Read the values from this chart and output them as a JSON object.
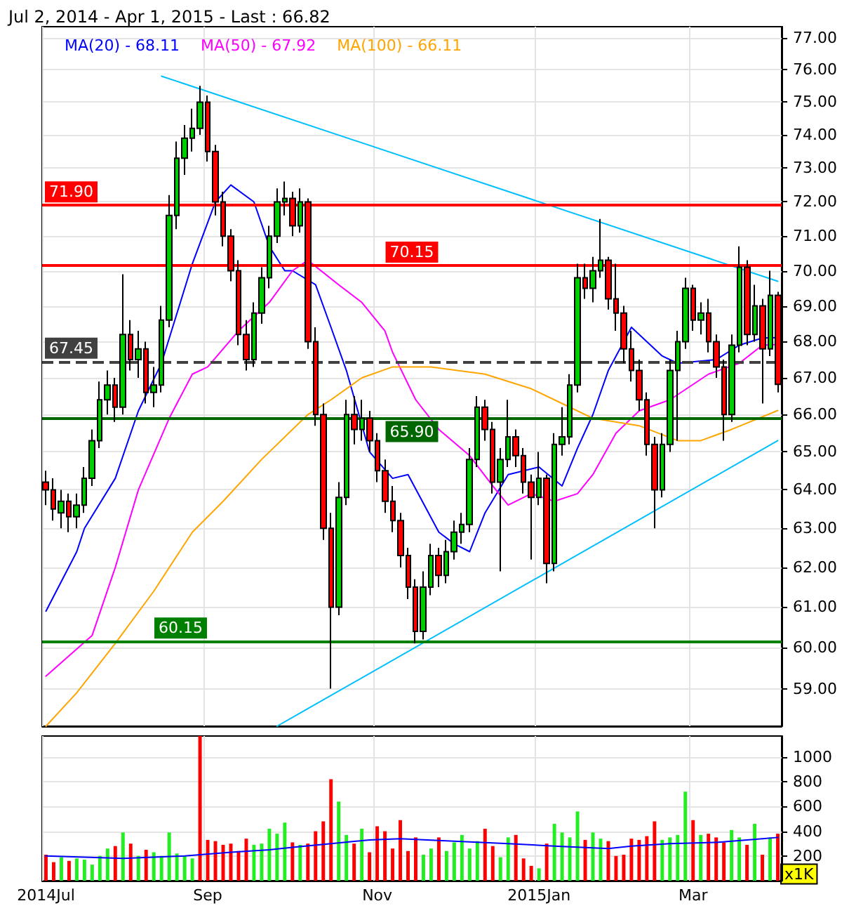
{
  "chart_data": [
    {
      "type": "candlestick",
      "title": "Jul 2, 2014 - Apr 1, 2015 - Last : 66.82",
      "categories": [
        null,
        null,
        null,
        null,
        null,
        null,
        null,
        null,
        null,
        null,
        null,
        null,
        null,
        null,
        null,
        null,
        null,
        null,
        null,
        null,
        null,
        null,
        null,
        null,
        null,
        null,
        null,
        null,
        null,
        null,
        null,
        null,
        null,
        null,
        null,
        null,
        null,
        null,
        null,
        null,
        null,
        null,
        null,
        null,
        null,
        null,
        null,
        null,
        null,
        null,
        null,
        null,
        null,
        null,
        null,
        null,
        null,
        null,
        null,
        null,
        null,
        null,
        null,
        null,
        null,
        null,
        null,
        null,
        null,
        null,
        null,
        null,
        null,
        null,
        null,
        null,
        null,
        null,
        null,
        null,
        null,
        null,
        null,
        null,
        null,
        null,
        null,
        null,
        null,
        null,
        null,
        null,
        null,
        null,
        null,
        null
      ],
      "ohlc": [
        [
          64.2,
          64.5,
          63.6,
          64.0
        ],
        [
          64.0,
          64.3,
          63.2,
          63.5
        ],
        [
          63.4,
          64.0,
          63.0,
          63.7
        ],
        [
          63.7,
          63.9,
          62.9,
          63.3
        ],
        [
          63.3,
          63.9,
          63.0,
          63.6
        ],
        [
          63.6,
          64.6,
          63.4,
          64.3
        ],
        [
          64.3,
          65.6,
          64.1,
          65.3
        ],
        [
          65.3,
          66.9,
          65.1,
          66.4
        ],
        [
          66.4,
          67.2,
          66.0,
          66.8
        ],
        [
          66.8,
          67.0,
          65.8,
          66.2
        ],
        [
          66.2,
          69.9,
          66.0,
          68.2
        ],
        [
          68.2,
          68.6,
          67.2,
          67.5
        ],
        [
          67.5,
          68.3,
          67.0,
          67.8
        ],
        [
          67.8,
          68.0,
          66.3,
          66.6
        ],
        [
          66.6,
          67.3,
          66.2,
          66.8
        ],
        [
          66.8,
          69.0,
          66.6,
          68.6
        ],
        [
          68.6,
          72.2,
          68.4,
          71.6
        ],
        [
          71.6,
          73.8,
          71.2,
          73.3
        ],
        [
          73.3,
          74.3,
          72.8,
          73.9
        ],
        [
          73.9,
          74.8,
          73.5,
          74.2
        ],
        [
          74.2,
          75.5,
          74.0,
          75.0
        ],
        [
          75.0,
          75.2,
          73.2,
          73.5
        ],
        [
          73.5,
          73.7,
          71.6,
          72.0
        ],
        [
          72.0,
          72.3,
          70.7,
          71.0
        ],
        [
          71.0,
          71.2,
          69.7,
          70.0
        ],
        [
          70.0,
          70.3,
          67.9,
          68.2
        ],
        [
          68.2,
          68.6,
          67.2,
          67.5
        ],
        [
          67.5,
          69.1,
          67.3,
          68.8
        ],
        [
          68.8,
          70.1,
          68.5,
          69.8
        ],
        [
          69.8,
          71.3,
          69.5,
          71.0
        ],
        [
          71.0,
          72.4,
          70.8,
          72.0
        ],
        [
          72.0,
          72.6,
          71.6,
          72.1
        ],
        [
          72.1,
          72.3,
          71.0,
          71.3
        ],
        [
          71.3,
          72.4,
          71.1,
          72.0
        ],
        [
          72.0,
          72.1,
          67.8,
          68.0
        ],
        [
          68.0,
          68.4,
          65.7,
          66.0
        ],
        [
          66.0,
          66.3,
          62.7,
          63.0
        ],
        [
          63.0,
          63.4,
          59.0,
          61.0
        ],
        [
          61.0,
          64.2,
          60.8,
          63.8
        ],
        [
          63.8,
          66.4,
          63.6,
          66.0
        ],
        [
          66.0,
          66.5,
          65.2,
          65.6
        ],
        [
          65.6,
          66.4,
          65.3,
          65.9
        ],
        [
          65.9,
          66.1,
          65.0,
          65.3
        ],
        [
          65.3,
          65.5,
          64.2,
          64.5
        ],
        [
          64.5,
          64.8,
          63.4,
          63.7
        ],
        [
          63.7,
          64.1,
          62.9,
          63.2
        ],
        [
          63.2,
          63.4,
          62.0,
          62.3
        ],
        [
          62.3,
          62.5,
          61.2,
          61.5
        ],
        [
          61.5,
          61.7,
          60.1,
          60.4
        ],
        [
          60.4,
          61.9,
          60.2,
          61.5
        ],
        [
          61.5,
          62.6,
          61.3,
          62.3
        ],
        [
          62.3,
          62.5,
          61.5,
          61.8
        ],
        [
          61.8,
          62.7,
          61.6,
          62.4
        ],
        [
          62.4,
          63.2,
          62.2,
          62.9
        ],
        [
          62.9,
          63.4,
          62.6,
          63.1
        ],
        [
          63.1,
          65.1,
          62.9,
          64.8
        ],
        [
          64.8,
          66.5,
          64.6,
          66.2
        ],
        [
          66.2,
          66.4,
          65.3,
          65.6
        ],
        [
          65.6,
          65.8,
          63.9,
          64.2
        ],
        [
          64.2,
          65.1,
          61.9,
          64.8
        ],
        [
          64.8,
          66.4,
          64.6,
          65.4
        ],
        [
          65.4,
          65.6,
          64.6,
          64.9
        ],
        [
          64.9,
          65.1,
          63.9,
          64.2
        ],
        [
          64.2,
          64.4,
          62.2,
          63.8
        ],
        [
          63.8,
          65.0,
          63.6,
          64.3
        ],
        [
          64.3,
          64.4,
          61.6,
          62.1
        ],
        [
          62.1,
          65.5,
          61.9,
          65.2
        ],
        [
          65.2,
          66.2,
          64.9,
          65.4
        ],
        [
          65.4,
          67.1,
          65.2,
          66.8
        ],
        [
          66.8,
          70.2,
          66.6,
          69.8
        ],
        [
          69.8,
          70.2,
          69.2,
          69.5
        ],
        [
          69.5,
          70.4,
          69.1,
          70.0
        ],
        [
          70.0,
          71.5,
          69.8,
          70.3
        ],
        [
          70.3,
          70.4,
          68.9,
          69.2
        ],
        [
          69.2,
          70.2,
          68.3,
          68.8
        ],
        [
          68.8,
          69.0,
          67.4,
          67.8
        ],
        [
          67.8,
          68.3,
          66.9,
          67.2
        ],
        [
          67.2,
          67.5,
          66.1,
          66.4
        ],
        [
          66.4,
          66.6,
          64.9,
          65.2
        ],
        [
          65.2,
          65.4,
          63.0,
          64.0
        ],
        [
          64.0,
          65.5,
          63.8,
          65.2
        ],
        [
          65.2,
          67.5,
          65.0,
          67.2
        ],
        [
          67.2,
          68.3,
          65.3,
          68.0
        ],
        [
          68.0,
          69.8,
          67.8,
          69.5
        ],
        [
          69.5,
          69.6,
          68.3,
          68.6
        ],
        [
          68.6,
          69.1,
          68.2,
          68.8
        ],
        [
          68.8,
          69.2,
          67.7,
          68.0
        ],
        [
          68.0,
          68.2,
          67.0,
          67.3
        ],
        [
          67.3,
          67.5,
          65.3,
          66.0
        ],
        [
          66.0,
          68.2,
          65.8,
          67.9
        ],
        [
          67.9,
          70.7,
          67.7,
          70.1
        ],
        [
          70.1,
          70.3,
          67.9,
          68.2
        ],
        [
          68.2,
          69.6,
          68.0,
          69.0
        ],
        [
          69.0,
          69.2,
          66.3,
          67.8
        ],
        [
          67.8,
          70.0,
          67.6,
          69.3
        ],
        [
          69.3,
          69.4,
          66.6,
          66.82
        ]
      ],
      "colors": [
        "#ff0000",
        "#ff0000",
        "#00cc00",
        "#ff0000",
        "#00cc00",
        "#00cc00",
        "#00cc00",
        "#00cc00",
        "#00cc00",
        "#ff0000",
        "#00cc00",
        "#ff0000",
        "#00cc00",
        "#ff0000",
        "#00cc00",
        "#00cc00",
        "#00cc00",
        "#00cc00",
        "#00cc00",
        "#00cc00",
        "#00cc00",
        "#ff0000",
        "#ff0000",
        "#ff0000",
        "#ff0000",
        "#ff0000",
        "#ff0000",
        "#00cc00",
        "#00cc00",
        "#00cc00",
        "#00cc00",
        "#00cc00",
        "#ff0000",
        "#00cc00",
        "#ff0000",
        "#ff0000",
        "#ff0000",
        "#ff0000",
        "#00cc00",
        "#00cc00",
        "#ff0000",
        "#00cc00",
        "#ff0000",
        "#ff0000",
        "#ff0000",
        "#ff0000",
        "#ff0000",
        "#ff0000",
        "#ff0000",
        "#00cc00",
        "#00cc00",
        "#ff0000",
        "#00cc00",
        "#00cc00",
        "#00cc00",
        "#00cc00",
        "#00cc00",
        "#ff0000",
        "#ff0000",
        "#00cc00",
        "#00cc00",
        "#ff0000",
        "#ff0000",
        "#ff0000",
        "#00cc00",
        "#ff0000",
        "#00cc00",
        "#00cc00",
        "#00cc00",
        "#00cc00",
        "#ff0000",
        "#00cc00",
        "#00cc00",
        "#ff0000",
        "#ff0000",
        "#ff0000",
        "#ff0000",
        "#ff0000",
        "#ff0000",
        "#ff0000",
        "#00cc00",
        "#00cc00",
        "#00cc00",
        "#00cc00",
        "#ff0000",
        "#00cc00",
        "#ff0000",
        "#ff0000",
        "#ff0000",
        "#00cc00",
        "#00cc00",
        "#ff0000",
        "#00cc00",
        "#ff0000",
        "#00cc00",
        "#ff0000"
      ],
      "series": [
        {
          "type": "line",
          "name": "MA(20) - 68.11",
          "color": "#0000ff",
          "values": [
            60.9,
            null,
            null,
            null,
            62.4,
            63.0,
            null,
            null,
            null,
            64.3,
            null,
            null,
            66.1,
            null,
            null,
            67.4,
            null,
            null,
            null,
            70.2,
            null,
            null,
            72.0,
            null,
            72.5,
            null,
            null,
            72.0,
            null,
            70.7,
            null,
            70.0,
            70.0,
            null,
            null,
            69.6,
            null,
            68.4,
            null,
            67.2,
            null,
            null,
            65.0,
            null,
            null,
            64.3,
            null,
            64.4,
            null,
            null,
            null,
            62.9,
            null,
            62.6,
            null,
            62.4,
            null,
            63.4,
            null,
            null,
            64.4,
            null,
            null,
            null,
            64.6,
            null,
            null,
            64.1,
            null,
            65.1,
            null,
            66.0,
            null,
            67.2,
            null,
            null,
            68.4,
            null,
            null,
            null,
            67.6,
            null,
            67.4,
            null,
            null,
            null,
            null,
            67.5,
            null,
            null,
            67.9,
            null,
            null,
            68.1,
            null,
            68.11
          ]
        },
        {
          "type": "line",
          "name": "MA(50) - 67.92",
          "color": "#ff00ff",
          "values": [
            59.3,
            null,
            null,
            null,
            null,
            null,
            60.3,
            null,
            null,
            62.0,
            null,
            null,
            64.0,
            null,
            null,
            null,
            65.9,
            null,
            null,
            67.1,
            null,
            67.3,
            null,
            null,
            null,
            68.3,
            null,
            null,
            null,
            69.1,
            null,
            null,
            70.0,
            null,
            70.3,
            null,
            null,
            null,
            69.6,
            null,
            null,
            69.1,
            null,
            null,
            68.3,
            67.7,
            null,
            null,
            66.4,
            null,
            null,
            65.6,
            null,
            null,
            null,
            64.9,
            null,
            null,
            64.1,
            null,
            63.6,
            null,
            null,
            63.9,
            null,
            null,
            63.7,
            null,
            null,
            63.9,
            null,
            64.4,
            null,
            null,
            65.5,
            null,
            null,
            66.1,
            null,
            null,
            null,
            66.4,
            null,
            null,
            null,
            null,
            67.1,
            null,
            null,
            null,
            67.4,
            null,
            null,
            67.9,
            null,
            67.92
          ]
        },
        {
          "type": "line",
          "name": "MA(100) - 66.11",
          "color": "#ffa500",
          "values": [
            58.1,
            null,
            null,
            null,
            58.9,
            null,
            null,
            null,
            null,
            60.1,
            null,
            null,
            null,
            null,
            61.4,
            null,
            null,
            null,
            null,
            62.9,
            null,
            null,
            null,
            63.7,
            null,
            null,
            null,
            null,
            64.8,
            null,
            null,
            null,
            null,
            null,
            66.0,
            null,
            null,
            66.4,
            null,
            null,
            null,
            67.0,
            null,
            null,
            null,
            67.3,
            null,
            null,
            null,
            null,
            67.3,
            null,
            null,
            null,
            null,
            null,
            null,
            67.1,
            null,
            null,
            null,
            null,
            null,
            66.7,
            null,
            null,
            null,
            null,
            66.2,
            null,
            null,
            65.9,
            null,
            null,
            null,
            null,
            null,
            65.7,
            null,
            null,
            null,
            null,
            65.3,
            null,
            null,
            65.3,
            null,
            null,
            null,
            65.6,
            null,
            null,
            null,
            null,
            null,
            66.11
          ]
        },
        {
          "type": "line",
          "color": "#00bfff",
          "values": [
            null,
            null,
            null,
            null,
            null,
            null,
            null,
            null,
            null,
            null,
            null,
            null,
            null,
            null,
            null,
            75.8,
            null,
            null,
            null,
            null,
            null,
            null,
            null,
            null,
            null,
            null,
            null,
            null,
            null,
            null,
            null,
            null,
            null,
            null,
            null,
            null,
            null,
            null,
            null,
            null,
            null,
            null,
            null,
            null,
            null,
            null,
            null,
            null,
            null,
            null,
            null,
            null,
            null,
            null,
            null,
            null,
            null,
            null,
            null,
            null,
            null,
            null,
            null,
            null,
            null,
            null,
            null,
            null,
            null,
            null,
            null,
            null,
            null,
            null,
            null,
            null,
            null,
            null,
            null,
            null,
            null,
            null,
            null,
            null,
            null,
            null,
            null,
            null,
            null,
            null,
            null,
            null,
            null,
            null,
            null,
            69.7
          ]
        },
        {
          "type": "line",
          "color": "#00bfff",
          "values": [
            null,
            null,
            null,
            null,
            null,
            null,
            null,
            null,
            null,
            null,
            null,
            null,
            null,
            null,
            null,
            null,
            null,
            null,
            null,
            null,
            null,
            null,
            null,
            null,
            null,
            null,
            null,
            null,
            null,
            null,
            58.1,
            null,
            null,
            null,
            null,
            null,
            null,
            null,
            null,
            null,
            null,
            null,
            null,
            null,
            null,
            null,
            null,
            null,
            null,
            null,
            null,
            null,
            null,
            null,
            null,
            null,
            null,
            null,
            null,
            null,
            null,
            null,
            null,
            null,
            null,
            null,
            null,
            null,
            null,
            null,
            null,
            null,
            null,
            null,
            null,
            null,
            null,
            null,
            null,
            null,
            null,
            null,
            null,
            null,
            null,
            null,
            null,
            null,
            null,
            null,
            null,
            null,
            null,
            null,
            null,
            65.3
          ]
        }
      ],
      "ylim": [
        58.1,
        77.35
      ],
      "yticks": [
        {
          "value": 59,
          "label": "59.00"
        },
        {
          "value": 60,
          "label": "60.00"
        },
        {
          "value": 61,
          "label": "61.00"
        },
        {
          "value": 62,
          "label": "62.00"
        },
        {
          "value": 63,
          "label": "63.00"
        },
        {
          "value": 64,
          "label": "64.00"
        },
        {
          "value": 65,
          "label": "65.00"
        },
        {
          "value": 66,
          "label": "66.00"
        },
        {
          "value": 67,
          "label": "67.00"
        },
        {
          "value": 68,
          "label": "68.00"
        },
        {
          "value": 69,
          "label": "69.00"
        },
        {
          "value": 70,
          "label": "70.00"
        },
        {
          "value": 71,
          "label": "71.00"
        },
        {
          "value": 72,
          "label": "72.00"
        },
        {
          "value": 73,
          "label": "73.00"
        },
        {
          "value": 74,
          "label": "74.00"
        },
        {
          "value": 75,
          "label": "75.00"
        },
        {
          "value": 76,
          "label": "76.00"
        },
        {
          "value": 77,
          "label": "77.00"
        }
      ],
      "log": "y",
      "grid": true,
      "legend": "top left",
      "tick_labels": "y",
      "marker": "none",
      "ref_lines": [
        {
          "axis": "y",
          "value": 71.9,
          "label": "71.90",
          "color": "#ff0000"
        },
        {
          "axis": "y",
          "value": 70.15,
          "label": "70.15",
          "color": "#ff0000"
        },
        {
          "axis": "y",
          "value": 67.45,
          "label": "67.45",
          "color": "#404040",
          "line_style": "dashed"
        },
        {
          "axis": "y",
          "value": 65.9,
          "label": "65.90",
          "color": "#006600"
        },
        {
          "axis": "y",
          "value": 60.15,
          "label": "60.15",
          "color": "#008000"
        }
      ]
    },
    {
      "type": "bar",
      "ylabel": "x1K",
      "categories": [
        "2014Jul",
        null,
        null,
        null,
        null,
        null,
        null,
        null,
        null,
        null,
        null,
        null,
        null,
        null,
        null,
        null,
        null,
        null,
        null,
        null,
        null,
        "Sep",
        null,
        null,
        null,
        null,
        null,
        null,
        null,
        null,
        null,
        null,
        null,
        null,
        null,
        null,
        null,
        null,
        null,
        null,
        null,
        null,
        null,
        "Nov",
        null,
        null,
        null,
        null,
        null,
        null,
        null,
        null,
        null,
        null,
        null,
        null,
        null,
        null,
        null,
        null,
        null,
        null,
        null,
        null,
        "2015Jan",
        null,
        null,
        null,
        null,
        null,
        null,
        null,
        null,
        null,
        null,
        null,
        null,
        null,
        null,
        null,
        null,
        null,
        null,
        null,
        "Mar",
        null,
        null,
        null,
        null,
        null,
        null,
        null,
        null,
        null,
        null,
        null
      ],
      "values": [
        210,
        150,
        190,
        160,
        180,
        170,
        130,
        200,
        260,
        280,
        390,
        300,
        200,
        250,
        230,
        200,
        390,
        220,
        200,
        180,
        1170,
        330,
        320,
        290,
        300,
        240,
        340,
        290,
        300,
        420,
        380,
        470,
        310,
        290,
        300,
        400,
        480,
        820,
        640,
        370,
        300,
        420,
        230,
        440,
        400,
        260,
        490,
        240,
        350,
        210,
        260,
        350,
        240,
        310,
        370,
        260,
        320,
        420,
        280,
        190,
        350,
        370,
        180,
        120,
        100,
        300,
        460,
        390,
        350,
        560,
        330,
        390,
        340,
        320,
        200,
        210,
        340,
        330,
        360,
        480,
        330,
        350,
        370,
        720,
        490,
        370,
        380,
        350,
        310,
        410,
        350,
        290,
        460,
        210,
        350,
        380
      ],
      "colors": [
        "#ff0000",
        "#ff0000",
        "#22ee22",
        "#ff0000",
        "#22ee22",
        "#22ee22",
        "#22ee22",
        "#22ee22",
        "#22ee22",
        "#ff0000",
        "#22ee22",
        "#ff0000",
        "#22ee22",
        "#ff0000",
        "#22ee22",
        "#22ee22",
        "#22ee22",
        "#22ee22",
        "#22ee22",
        "#22ee22",
        "#ff0000",
        "#ff0000",
        "#ff0000",
        "#ff0000",
        "#ff0000",
        "#ff0000",
        "#ff0000",
        "#22ee22",
        "#22ee22",
        "#22ee22",
        "#22ee22",
        "#22ee22",
        "#ff0000",
        "#22ee22",
        "#ff0000",
        "#ff0000",
        "#ff0000",
        "#ff0000",
        "#22ee22",
        "#22ee22",
        "#ff0000",
        "#22ee22",
        "#ff0000",
        "#ff0000",
        "#ff0000",
        "#ff0000",
        "#ff0000",
        "#ff0000",
        "#ff0000",
        "#22ee22",
        "#22ee22",
        "#ff0000",
        "#22ee22",
        "#22ee22",
        "#22ee22",
        "#22ee22",
        "#22ee22",
        "#ff0000",
        "#ff0000",
        "#22ee22",
        "#22ee22",
        "#ff0000",
        "#ff0000",
        "#ff0000",
        "#22ee22",
        "#ff0000",
        "#22ee22",
        "#22ee22",
        "#22ee22",
        "#22ee22",
        "#ff0000",
        "#22ee22",
        "#22ee22",
        "#ff0000",
        "#ff0000",
        "#ff0000",
        "#ff0000",
        "#ff0000",
        "#ff0000",
        "#ff0000",
        "#22ee22",
        "#22ee22",
        "#22ee22",
        "#22ee22",
        "#ff0000",
        "#22ee22",
        "#ff0000",
        "#ff0000",
        "#ff0000",
        "#22ee22",
        "#22ee22",
        "#ff0000",
        "#22ee22",
        "#ff0000",
        "#22ee22",
        "#ff0000"
      ],
      "series": [
        {
          "type": "line",
          "color": "#0000ff",
          "values": [
            200,
            null,
            null,
            null,
            null,
            null,
            null,
            null,
            null,
            null,
            180,
            null,
            null,
            null,
            null,
            null,
            null,
            null,
            200,
            null,
            null,
            null,
            null,
            null,
            230,
            null,
            null,
            null,
            null,
            250,
            null,
            null,
            270,
            null,
            null,
            null,
            null,
            300,
            null,
            null,
            null,
            null,
            330,
            null,
            null,
            null,
            340,
            null,
            null,
            null,
            null,
            null,
            null,
            320,
            null,
            null,
            null,
            null,
            null,
            null,
            300,
            null,
            null,
            null,
            null,
            null,
            280,
            null,
            null,
            null,
            null,
            null,
            null,
            260,
            null,
            null,
            280,
            null,
            null,
            null,
            null,
            300,
            null,
            null,
            null,
            null,
            null,
            310,
            null,
            null,
            null,
            null,
            null,
            340,
            null,
            350
          ]
        }
      ],
      "ylim": [
        0,
        1170
      ],
      "yticks": [
        200,
        400,
        600,
        800,
        1000
      ],
      "grid": true,
      "marker": "none"
    }
  ]
}
